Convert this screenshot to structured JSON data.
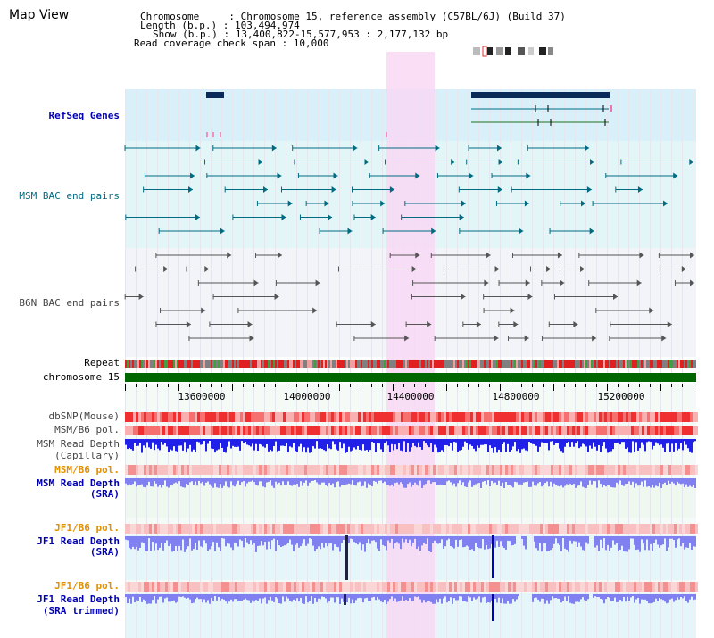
{
  "title": "Map View",
  "header": {
    "chromosome": "Chromosome     : Chromosome 15, reference assembly (C57BL/6J) (Build 37)",
    "length": "Length (b.p.) : 103,494,974",
    "show": "Show (b.p.) : 13,400,822-15,577,953 : 2,177,132 bp",
    "span": "Read coverage check span : 10,000"
  },
  "tracks": {
    "refseq": "RefSeq Genes",
    "msm_bac": "MSM BAC end pairs",
    "b6n_bac": "B6N BAC end pairs",
    "repeat": "Repeat",
    "chrom": "chromosome 15",
    "dbsnp": "dbSNP(Mouse)",
    "msm_b6_pol_1": "MSM/B6 pol.",
    "msm_depth_cap_1": "MSM Read Depth",
    "msm_depth_cap_2": "(Capillary)",
    "msm_b6_pol_2": "MSM/B6 pol.",
    "msm_depth_sra_1": "MSM Read Depth",
    "msm_depth_sra_2": "(SRA)",
    "jf1_pol_1": "JF1/B6 pol.",
    "jf1_depth_1": "JF1 Read Depth",
    "jf1_depth_2": "(SRA)",
    "jf1_pol_2": "JF1/B6 pol.",
    "jf1_trim_1": "JF1 Read Depth",
    "jf1_trim_2": "(SRA trimmed)"
  },
  "axis": {
    "ticks": [
      "13600000",
      "14000000",
      "14400000",
      "14800000",
      "15200000"
    ]
  },
  "colors": {
    "highlight": "#f8d8f4",
    "refseq_bg": "#d8f0fa",
    "msm_bg": "#e2f6f8",
    "b6n_bg": "#f2f4f8",
    "chrom_green": "#006600",
    "depth_blue": "#2020e8",
    "sra_blue": "#8080f0"
  }
}
